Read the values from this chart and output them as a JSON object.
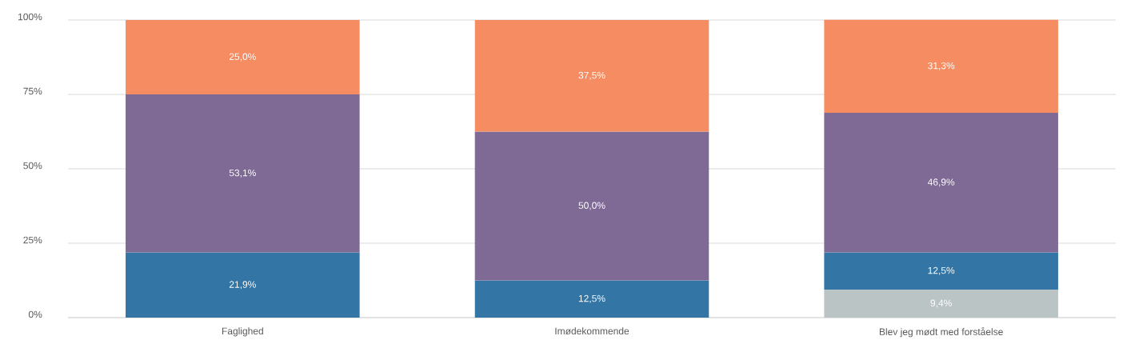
{
  "chart_data": {
    "type": "bar",
    "stacked": true,
    "categories": [
      "Faglighed",
      "Imødekommende",
      "Blev jeg mødt med forståelse"
    ],
    "series": [
      {
        "color": "#bac4c5",
        "values": [
          null,
          null,
          9.4
        ],
        "value_labels": [
          null,
          null,
          "9,4%"
        ]
      },
      {
        "color": "#3376a5",
        "values": [
          21.9,
          12.5,
          12.5
        ],
        "value_labels": [
          "21,9%",
          "12,5%",
          "12,5%"
        ]
      },
      {
        "color": "#7f6a96",
        "values": [
          53.1,
          50.0,
          46.9
        ],
        "value_labels": [
          "53,1%",
          "50,0%",
          "46,9%"
        ]
      },
      {
        "color": "#f68d62",
        "values": [
          25.0,
          37.5,
          31.3
        ],
        "value_labels": [
          "25,0%",
          "37,5%",
          "31,3%"
        ]
      }
    ],
    "ylim": [
      0,
      100
    ],
    "yticks": [
      {
        "value": 0,
        "label": "0%"
      },
      {
        "value": 25,
        "label": "25%"
      },
      {
        "value": 50,
        "label": "50%"
      },
      {
        "value": 75,
        "label": "75%"
      },
      {
        "value": 100,
        "label": "100%"
      }
    ],
    "grid": "y"
  }
}
